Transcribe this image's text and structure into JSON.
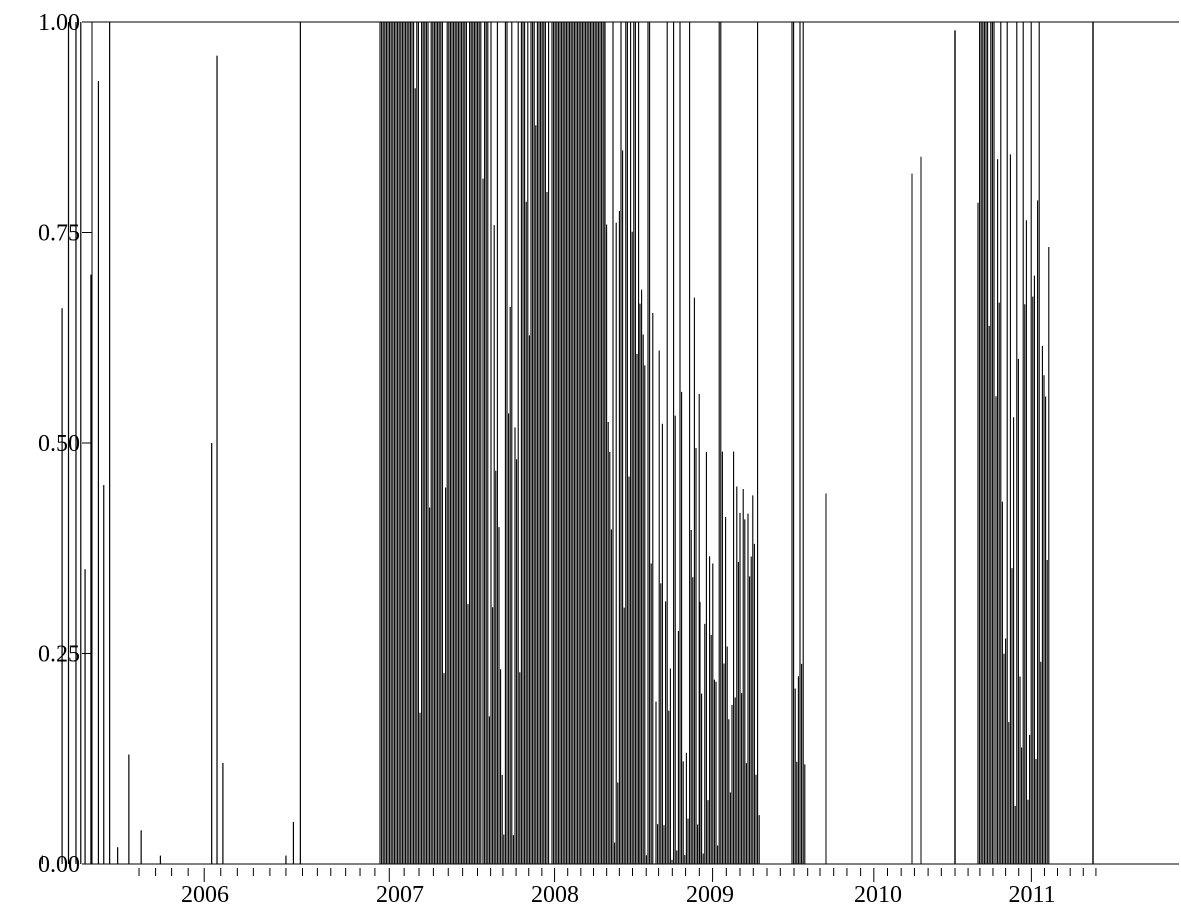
{
  "chart_data": {
    "type": "bar",
    "title": "",
    "xlabel": "",
    "ylabel": "",
    "x_axis": {
      "type": "time",
      "range": [
        "2005-01-01",
        "2011-10-01"
      ],
      "year_labels": [
        "2006",
        "2007",
        "2008",
        "2009",
        "2010",
        "2011"
      ],
      "minor_ticks": "monthly",
      "major_ticks": "yearly"
    },
    "y_axis": {
      "range": [
        0,
        1
      ],
      "ticks": [
        0,
        0.25,
        0.5,
        0.75,
        1
      ],
      "tick_labels": [
        "0.00",
        "0.25",
        "0.50",
        "0.75",
        "1.00"
      ]
    },
    "grid": false,
    "series": [
      {
        "color": "#000000",
        "note_values": "smoothed regime probability; values approximated from dense plot",
        "x": [
          "2005-09-01",
          "2005-09-15",
          "2005-10-08",
          "2005-10-20",
          "2005-11-03",
          "2005-11-12",
          "2005-11-20",
          "2005-12-01",
          "2005-12-15",
          "2005-12-25",
          "2006-01-05",
          "2006-01-20",
          "2006-02-10",
          "2006-03-05",
          "2006-04-10",
          "2006-05-05",
          "2006-07-15",
          "2006-07-25",
          "2006-08-05",
          "2006-08-15",
          "2006-12-01",
          "2006-12-15",
          "2006-12-28"
        ],
        "values": [
          0.01,
          0.0,
          0.66,
          1.0,
          1.0,
          1.0,
          0.35,
          0.7,
          0.93,
          0.45,
          1.0,
          0.02,
          0.13,
          0.04,
          0.01,
          0.0,
          0.5,
          0.96,
          0.12,
          0.0,
          0.01,
          0.05,
          1.0
        ]
      }
    ]
  }
}
